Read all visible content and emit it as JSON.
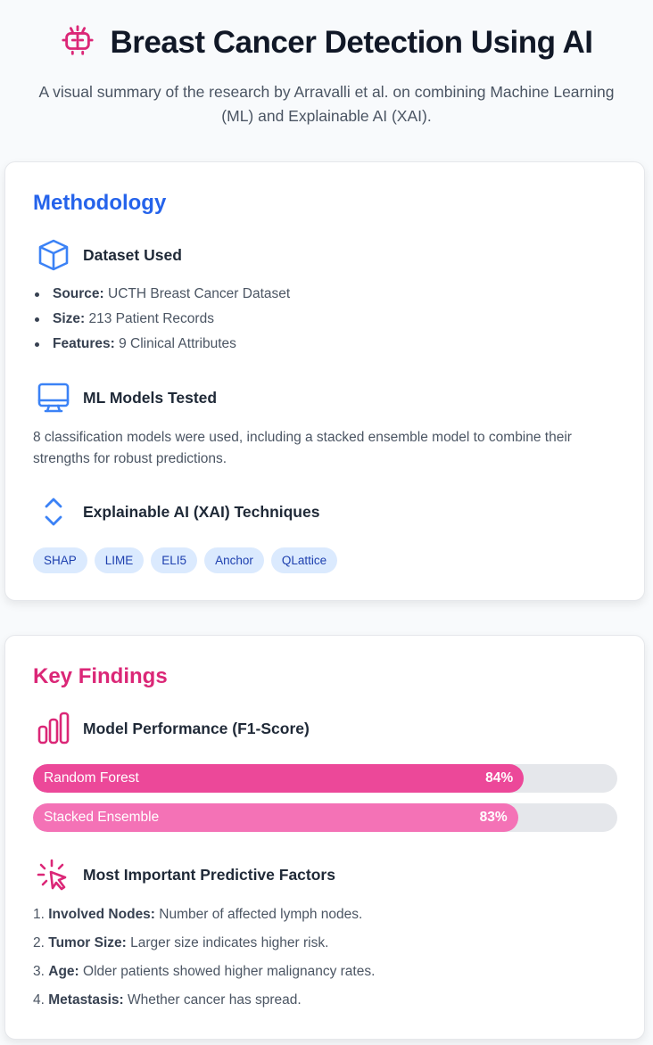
{
  "header": {
    "icon": "brain-icon",
    "title": "Breast Cancer Detection Using AI",
    "subtitle_line1": "A visual summary of the research by Arravalli et al. on combining Machine Learning",
    "subtitle_line2": "(ML) and Explainable AI (XAI)."
  },
  "methodology": {
    "title": "Methodology",
    "color": "#2563eb",
    "dataset": {
      "icon": "cube-icon",
      "title": "Dataset Used",
      "items": [
        {
          "label": "Source:",
          "value": "UCTH Breast Cancer Dataset"
        },
        {
          "label": "Size:",
          "value": "213 Patient Records"
        },
        {
          "label": "Features:",
          "value": "9 Clinical Attributes"
        }
      ]
    },
    "models": {
      "icon": "monitor-icon",
      "title": "ML Models Tested",
      "text": "8 classification models were used, including a stacked ensemble model to combine their strengths for robust predictions."
    },
    "xai": {
      "icon": "chevrons-up-down-icon",
      "title": "Explainable AI (XAI) Techniques",
      "tags": [
        "SHAP",
        "LIME",
        "ELI5",
        "Anchor",
        "QLattice"
      ]
    }
  },
  "findings": {
    "title": "Key Findings",
    "color": "#db2777",
    "performance": {
      "icon": "bar-chart-icon",
      "title": "Model Performance (F1-Score)",
      "bars": [
        {
          "label": "Random Forest",
          "pct_text": "84%",
          "value": 0.84,
          "color": "#ec4899"
        },
        {
          "label": "Stacked Ensemble",
          "pct_text": "83%",
          "value": 0.83,
          "color": "#f472b6"
        }
      ]
    },
    "factors": {
      "icon": "cursor-click-icon",
      "title": "Most Important Predictive Factors",
      "items": [
        {
          "num": "1.",
          "label": "Involved Nodes:",
          "value": "Number of affected lymph nodes."
        },
        {
          "num": "2.",
          "label": "Tumor Size:",
          "value": "Larger size indicates higher risk."
        },
        {
          "num": "3.",
          "label": "Age:",
          "value": "Older patients showed higher malignancy rates."
        },
        {
          "num": "4.",
          "label": "Metastasis:",
          "value": "Whether cancer has spread."
        }
      ]
    }
  }
}
